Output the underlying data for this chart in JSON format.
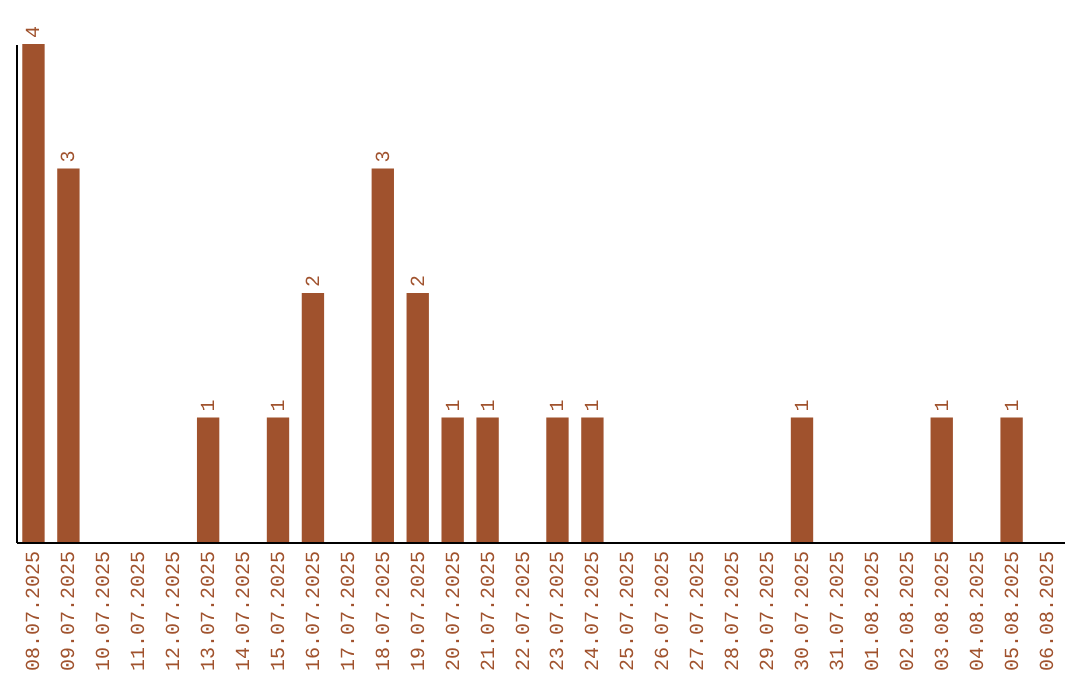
{
  "chart_data": {
    "type": "bar",
    "categories": [
      "08.07.2025",
      "09.07.2025",
      "10.07.2025",
      "11.07.2025",
      "12.07.2025",
      "13.07.2025",
      "14.07.2025",
      "15.07.2025",
      "16.07.2025",
      "17.07.2025",
      "18.07.2025",
      "19.07.2025",
      "20.07.2025",
      "21.07.2025",
      "22.07.2025",
      "23.07.2025",
      "24.07.2025",
      "25.07.2025",
      "26.07.2025",
      "27.07.2025",
      "28.07.2025",
      "29.07.2025",
      "30.07.2025",
      "31.07.2025",
      "01.08.2025",
      "02.08.2025",
      "03.08.2025",
      "04.08.2025",
      "05.08.2025",
      "06.08.2025"
    ],
    "values": [
      4,
      3,
      0,
      0,
      0,
      1,
      0,
      1,
      2,
      0,
      3,
      2,
      1,
      1,
      0,
      1,
      1,
      0,
      0,
      0,
      0,
      0,
      1,
      0,
      0,
      0,
      1,
      0,
      1,
      0
    ],
    "value_labels": [
      "4",
      "3",
      null,
      null,
      null,
      "1",
      null,
      "1",
      "2",
      null,
      "3",
      "2",
      "1",
      "1",
      null,
      "1",
      "1",
      null,
      null,
      null,
      null,
      null,
      "1",
      null,
      null,
      null,
      "1",
      null,
      "1",
      null
    ],
    "color": "#a0522d",
    "grid": false,
    "tick_labels": "x"
  }
}
